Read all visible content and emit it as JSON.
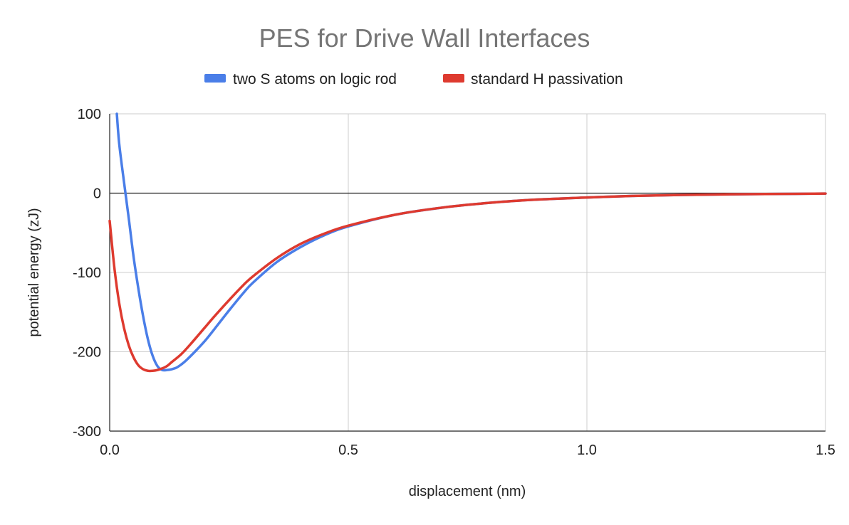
{
  "chart_data": {
    "type": "line",
    "title": "PES for Drive Wall Interfaces",
    "xlabel": "displacement (nm)",
    "ylabel": "potential energy (zJ)",
    "xlim": [
      0,
      1.5
    ],
    "ylim": [
      -300,
      100
    ],
    "x_ticks": [
      "0.0",
      "0.5",
      "1.0",
      "1.5"
    ],
    "y_ticks": [
      "100",
      "0",
      "-100",
      "-200",
      "-300"
    ],
    "grid": true,
    "legend_position": "top",
    "series": [
      {
        "name": "two S atoms on logic rod",
        "color": "#4a7ee8",
        "x": [
          0.015,
          0.02,
          0.03,
          0.04,
          0.05,
          0.06,
          0.07,
          0.08,
          0.09,
          0.1,
          0.11,
          0.12,
          0.13,
          0.14,
          0.15,
          0.16,
          0.18,
          0.2,
          0.22,
          0.25,
          0.28,
          0.3,
          0.35,
          0.4,
          0.45,
          0.5,
          0.6,
          0.7,
          0.8,
          0.9,
          1.0,
          1.1,
          1.2,
          1.3,
          1.4,
          1.5
        ],
        "y": [
          100,
          62,
          14,
          -32,
          -80,
          -120,
          -155,
          -184,
          -205,
          -218,
          -223,
          -223,
          -222,
          -220,
          -216,
          -211,
          -199,
          -186,
          -171,
          -148,
          -126,
          -113,
          -87,
          -68,
          -53,
          -42,
          -27,
          -18,
          -12,
          -8,
          -5.5,
          -3.5,
          -2.3,
          -1.5,
          -1,
          -0.6
        ]
      },
      {
        "name": "standard H passivation",
        "color": "#de3a2f",
        "x": [
          0.0,
          0.01,
          0.02,
          0.03,
          0.04,
          0.05,
          0.06,
          0.07,
          0.08,
          0.09,
          0.1,
          0.11,
          0.12,
          0.13,
          0.15,
          0.17,
          0.2,
          0.22,
          0.25,
          0.28,
          0.3,
          0.35,
          0.4,
          0.45,
          0.5,
          0.6,
          0.7,
          0.8,
          0.9,
          1.0,
          1.1,
          1.2,
          1.3,
          1.4,
          1.5
        ],
        "y": [
          -35,
          -95,
          -139,
          -170,
          -192,
          -207,
          -217,
          -222,
          -224,
          -224,
          -223,
          -221,
          -218,
          -213,
          -203,
          -190,
          -169,
          -155,
          -135,
          -116,
          -105,
          -82,
          -64,
          -51,
          -41,
          -27,
          -18,
          -12,
          -8,
          -5.5,
          -3.5,
          -2.3,
          -1.5,
          -1,
          -0.6
        ]
      }
    ]
  }
}
